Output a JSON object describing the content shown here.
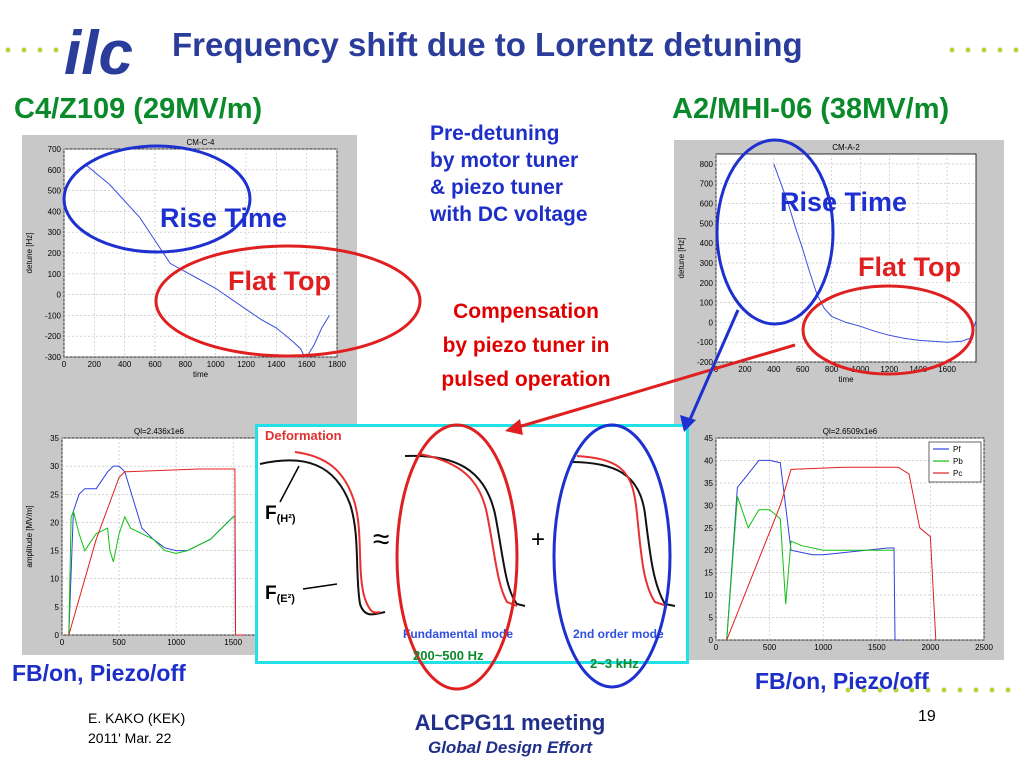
{
  "slide": {
    "title": "Frequency shift due to Lorentz detuning",
    "left_header": "C4/Z109 (29MV/m)",
    "right_header": "A2/MHI-06 (38MV/m)",
    "pre_detuning_lines": [
      "Pre-detuning",
      "by motor tuner",
      "& piezo tuner",
      "with DC voltage"
    ],
    "compensation_lines": [
      "Compensation",
      "by piezo tuner in",
      "pulsed operation"
    ],
    "rise_time_label": "Rise Time",
    "flat_top_label": "Flat Top",
    "fb_label": "FB/on,  Piezo/off",
    "footer_author": "E. KAKO (KEK)",
    "footer_date": "2011' Mar. 22",
    "footer_meeting": "ALCPG11 meeting",
    "footer_subtitle": "Global Design Effort",
    "page_number": "19",
    "logo_text": "ilc"
  },
  "diagram": {
    "deformation_label": "Deformation",
    "fh_label_main": "F",
    "fh_label_sub": "(H²)",
    "fe_label_main": "F",
    "fe_label_sub": "(E²)",
    "approx_sign": "≈",
    "plus_sign": "+",
    "fundamental_label": "Fundamental mode",
    "second_label": "2nd order mode",
    "freq1": "200~500 Hz",
    "freq2": "2~3 kHz"
  },
  "chart_data": [
    {
      "type": "line",
      "title": "CM-C-4",
      "xlabel": "time",
      "ylabel": "detune [Hz]",
      "xlim": [
        0,
        1800
      ],
      "ylim": [
        -300,
        700
      ],
      "xticks": [
        "0",
        "200",
        "400",
        "600",
        "800",
        "1000",
        "1200",
        "1400",
        "1600",
        "1800"
      ],
      "yticks": [
        "700",
        "600",
        "500",
        "400",
        "300",
        "200",
        "100",
        "0",
        "-100",
        "-200",
        "-300"
      ],
      "grid": true,
      "series": [
        {
          "color": "#3a50e0",
          "x": [
            150,
            200,
            300,
            400,
            500,
            600,
            700,
            800,
            900,
            1000,
            1100,
            1200,
            1300,
            1400,
            1500,
            1560,
            1580,
            1600,
            1650,
            1700,
            1750
          ],
          "y": [
            620,
            590,
            530,
            450,
            370,
            260,
            150,
            110,
            70,
            30,
            -20,
            -70,
            -120,
            -160,
            -220,
            -260,
            -290,
            -300,
            -240,
            -160,
            -100
          ]
        }
      ]
    },
    {
      "type": "line",
      "title": "CM-A-2",
      "xlabel": "time",
      "ylabel": "detune [Hz]",
      "xlim": [
        0,
        1800
      ],
      "ylim": [
        -200,
        850
      ],
      "xticks": [
        "0",
        "200",
        "400",
        "600",
        "800",
        "1000",
        "1200",
        "1400",
        "1600"
      ],
      "yticks": [
        "800",
        "700",
        "600",
        "500",
        "400",
        "300",
        "200",
        "100",
        "0",
        "-100",
        "-200"
      ],
      "grid": true,
      "series": [
        {
          "color": "#3a50e0",
          "x": [
            400,
            450,
            500,
            550,
            600,
            650,
            700,
            750,
            800,
            900,
            1000,
            1100,
            1200,
            1300,
            1400,
            1500,
            1600,
            1700,
            1760,
            1800
          ],
          "y": [
            800,
            700,
            600,
            480,
            370,
            250,
            140,
            70,
            30,
            0,
            -20,
            -45,
            -65,
            -80,
            -90,
            -95,
            -100,
            -95,
            -80,
            10
          ]
        }
      ]
    },
    {
      "type": "line",
      "title": "Ql=2.436x1e6",
      "xlabel": "",
      "ylabel": "amplitude [MV/m]",
      "xlim": [
        0,
        1700
      ],
      "ylim": [
        0,
        35
      ],
      "xticks": [
        "0",
        "500",
        "1000",
        "1500"
      ],
      "yticks": [
        "35",
        "30",
        "25",
        "20",
        "15",
        "10",
        "5",
        "0"
      ],
      "grid": true,
      "series": [
        {
          "color": "#3040e0",
          "x": [
            60,
            100,
            150,
            200,
            300,
            400,
            450,
            500,
            550,
            700,
            800,
            900,
            1000,
            1100,
            1200,
            1300,
            1400,
            1500,
            1515,
            1520,
            1600
          ],
          "y": [
            0,
            22,
            25,
            26,
            26,
            29,
            30,
            30,
            29,
            19,
            17,
            15.5,
            15,
            15,
            16,
            17,
            19,
            21,
            21,
            0,
            0
          ]
        },
        {
          "color": "#10c010",
          "x": [
            60,
            80,
            100,
            150,
            200,
            300,
            400,
            420,
            450,
            500,
            550,
            600,
            700,
            800,
            900,
            1000,
            1100,
            1200,
            1300,
            1400,
            1500,
            1515
          ],
          "y": [
            0,
            21,
            22,
            18,
            15,
            18,
            19,
            15,
            13,
            18,
            21,
            19,
            18,
            17,
            15,
            14.5,
            15,
            16,
            17,
            19,
            21,
            21
          ]
        },
        {
          "color": "#e02020",
          "x": [
            60,
            300,
            500,
            550,
            1200,
            1515,
            1520,
            1600
          ],
          "y": [
            0,
            17,
            28,
            29,
            29.5,
            29.5,
            0,
            0
          ]
        }
      ]
    },
    {
      "type": "line",
      "title": "Ql=2.6509x1e6",
      "xlabel": "",
      "ylabel": "amplitude [MV/m]",
      "xlim": [
        0,
        2500
      ],
      "ylim": [
        0,
        45
      ],
      "xticks": [
        "0",
        "500",
        "1000",
        "1500",
        "2000",
        "2500"
      ],
      "yticks": [
        "45",
        "40",
        "35",
        "30",
        "25",
        "20",
        "15",
        "10",
        "5",
        "0"
      ],
      "grid": true,
      "legend": [
        "Pf",
        "Pb",
        "Pc"
      ],
      "legend_position": "top-right",
      "series": [
        {
          "name": "Pf",
          "color": "#3040e0",
          "x": [
            100,
            200,
            300,
            400,
            500,
            600,
            700,
            800,
            900,
            1000,
            1200,
            1400,
            1600,
            1660,
            1670,
            1700
          ],
          "y": [
            0,
            34,
            37,
            40,
            40,
            39.5,
            20,
            19.5,
            19,
            19,
            19.5,
            20,
            20.5,
            20.5,
            0,
            0
          ]
        },
        {
          "name": "Pb",
          "color": "#10c010",
          "x": [
            100,
            200,
            300,
            400,
            500,
            600,
            650,
            700,
            800,
            1000,
            1200,
            1400,
            1600,
            1660
          ],
          "y": [
            0,
            32,
            25,
            29,
            29,
            27,
            8,
            22,
            21,
            20,
            20,
            20,
            20,
            20
          ]
        },
        {
          "name": "Pc",
          "color": "#e02020",
          "x": [
            100,
            600,
            700,
            1200,
            1700,
            1800,
            1900,
            2000,
            2050
          ],
          "y": [
            0,
            30,
            38,
            38.5,
            38.5,
            37,
            25,
            23,
            0
          ]
        }
      ]
    }
  ]
}
